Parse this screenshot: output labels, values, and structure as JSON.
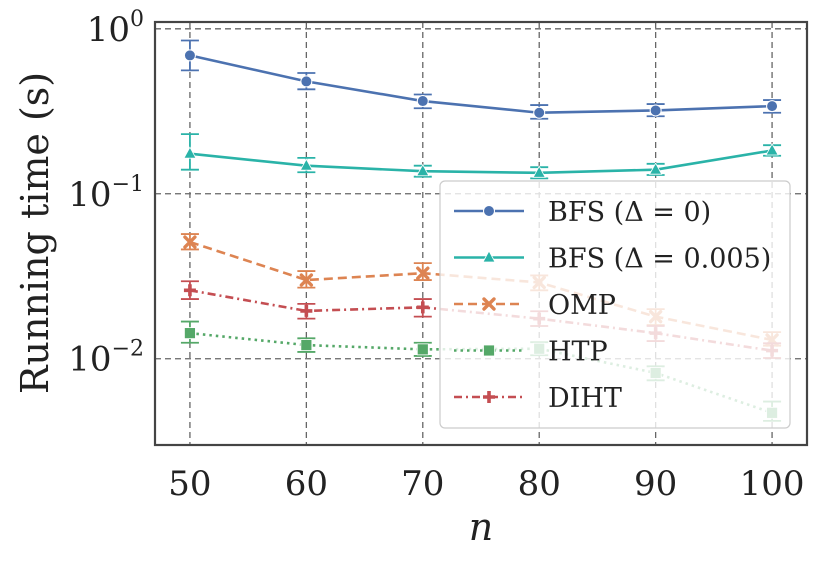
{
  "chart_data": {
    "type": "line",
    "title": "",
    "xlabel": "n",
    "ylabel": "Running time (s)",
    "yscale": "log",
    "xlim": [
      47,
      103
    ],
    "ylim": [
      0.003,
      1.1
    ],
    "x": [
      50,
      60,
      70,
      80,
      90,
      100
    ],
    "x_tick_labels": [
      "50",
      "60",
      "70",
      "80",
      "90",
      "100"
    ],
    "y_ticks": [
      {
        "value": 0.01,
        "base": "10",
        "exp": "−2"
      },
      {
        "value": 0.1,
        "base": "10",
        "exp": "−1"
      },
      {
        "value": 1,
        "base": "10",
        "exp": "0"
      }
    ],
    "grid": true,
    "legend_position": "lower-right",
    "series": [
      {
        "name": "BFS (Δ = 0)",
        "color": "#4c72b0",
        "marker": "circle",
        "dash": "solid",
        "values": [
          0.69,
          0.48,
          0.365,
          0.31,
          0.32,
          0.34
        ],
        "err_low": [
          0.56,
          0.43,
          0.33,
          0.285,
          0.295,
          0.31
        ],
        "err_high": [
          0.85,
          0.54,
          0.4,
          0.345,
          0.35,
          0.37
        ]
      },
      {
        "name": "BFS (Δ = 0.005)",
        "color": "#2ab3a8",
        "marker": "triangle",
        "dash": "solid",
        "values": [
          0.175,
          0.148,
          0.137,
          0.134,
          0.14,
          0.183
        ],
        "err_low": [
          0.14,
          0.135,
          0.127,
          0.124,
          0.13,
          0.17
        ],
        "err_high": [
          0.23,
          0.165,
          0.148,
          0.145,
          0.152,
          0.197
        ]
      },
      {
        "name": "OMP",
        "color": "#dd8452",
        "marker": "x",
        "dash": "dashed",
        "values": [
          0.051,
          0.03,
          0.033,
          0.029,
          0.018,
          0.013
        ],
        "err_low": [
          0.046,
          0.027,
          0.03,
          0.026,
          0.016,
          0.012
        ],
        "err_high": [
          0.057,
          0.034,
          0.038,
          0.032,
          0.02,
          0.0145
        ]
      },
      {
        "name": "HTP",
        "color": "#55a868",
        "marker": "square",
        "dash": "dotted",
        "values": [
          0.0143,
          0.0121,
          0.0114,
          0.0115,
          0.0082,
          0.0047
        ],
        "err_low": [
          0.0125,
          0.011,
          0.0104,
          0.0105,
          0.0074,
          0.0042
        ],
        "err_high": [
          0.0168,
          0.0133,
          0.0125,
          0.0126,
          0.009,
          0.0055
        ]
      },
      {
        "name": "DIHT",
        "color": "#c44e52",
        "marker": "plus",
        "dash": "dashdot",
        "values": [
          0.026,
          0.0195,
          0.0205,
          0.0175,
          0.0143,
          0.0112
        ],
        "err_low": [
          0.023,
          0.0175,
          0.018,
          0.0158,
          0.0128,
          0.0101
        ],
        "err_high": [
          0.0295,
          0.0215,
          0.023,
          0.0194,
          0.0158,
          0.0124
        ]
      }
    ]
  }
}
